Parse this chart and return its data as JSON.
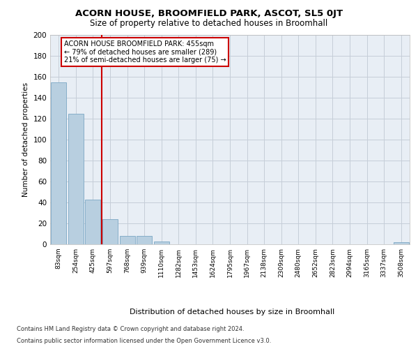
{
  "title": "ACORN HOUSE, BROOMFIELD PARK, ASCOT, SL5 0JT",
  "subtitle": "Size of property relative to detached houses in Broomhall",
  "xlabel": "Distribution of detached houses by size in Broomhall",
  "ylabel": "Number of detached properties",
  "categories": [
    "83sqm",
    "254sqm",
    "425sqm",
    "597sqm",
    "768sqm",
    "939sqm",
    "1110sqm",
    "1282sqm",
    "1453sqm",
    "1624sqm",
    "1795sqm",
    "1967sqm",
    "2138sqm",
    "2309sqm",
    "2480sqm",
    "2652sqm",
    "2823sqm",
    "2994sqm",
    "3165sqm",
    "3337sqm",
    "3508sqm"
  ],
  "values": [
    155,
    125,
    43,
    24,
    8,
    8,
    3,
    0,
    0,
    0,
    0,
    0,
    0,
    0,
    0,
    0,
    0,
    0,
    0,
    0,
    2
  ],
  "bar_color": "#b8cfe0",
  "bar_edge_color": "#7ba7c4",
  "vline_color": "#cc0000",
  "annotation_text": "ACORN HOUSE BROOMFIELD PARK: 455sqm\n← 79% of detached houses are smaller (289)\n21% of semi-detached houses are larger (75) →",
  "annotation_box_color": "#ffffff",
  "annotation_box_edge": "#cc0000",
  "ylim": [
    0,
    200
  ],
  "yticks": [
    0,
    20,
    40,
    60,
    80,
    100,
    120,
    140,
    160,
    180,
    200
  ],
  "bg_color": "#e8eef5",
  "grid_color": "#c5cdd8",
  "footer_line1": "Contains HM Land Registry data © Crown copyright and database right 2024.",
  "footer_line2": "Contains public sector information licensed under the Open Government Licence v3.0."
}
